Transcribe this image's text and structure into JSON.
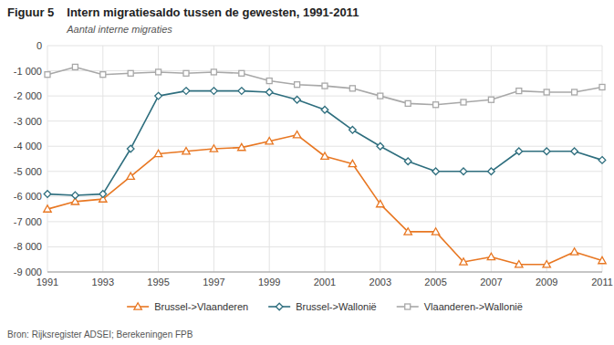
{
  "chart_data": {
    "type": "line",
    "title": "Intern migratiesaldo tussen de gewesten, 1991-2011",
    "subtitle": "Aantal interne migraties",
    "annotations": [
      "Figuur 5",
      "Bron: Rijksregister ADSEI; Berekeningen FPB"
    ],
    "x": [
      1991,
      1992,
      1993,
      1994,
      1995,
      1996,
      1997,
      1998,
      1999,
      2000,
      2001,
      2002,
      2003,
      2004,
      2005,
      2006,
      2007,
      2008,
      2009,
      2010,
      2011
    ],
    "series": [
      {
        "name": "Brussel->Vlaanderen",
        "color": "#E87722",
        "marker": "triangle",
        "values": [
          -6500,
          -6200,
          -6100,
          -5200,
          -4300,
          -4200,
          -4100,
          -4050,
          -3800,
          -3550,
          -4400,
          -4700,
          -6300,
          -7400,
          -7400,
          -8600,
          -8400,
          -8700,
          -8700,
          -8200,
          -8550
        ]
      },
      {
        "name": "Brussel->Wallonië",
        "color": "#2E6E7E",
        "marker": "diamond",
        "values": [
          -5900,
          -5950,
          -5900,
          -4100,
          -2000,
          -1800,
          -1800,
          -1800,
          -1850,
          -2150,
          -2550,
          -3350,
          -4000,
          -4600,
          -5000,
          -5000,
          -5000,
          -4200,
          -4200,
          -4200,
          -4550
        ]
      },
      {
        "name": "Vlaanderen->Wallonië",
        "color": "#A8A8A8",
        "marker": "square",
        "values": [
          -1150,
          -850,
          -1150,
          -1100,
          -1050,
          -1100,
          -1050,
          -1100,
          -1400,
          -1550,
          -1600,
          -1700,
          -2000,
          -2300,
          -2350,
          -2250,
          -2150,
          -1800,
          -1850,
          -1850,
          -1650
        ]
      }
    ],
    "xlim": [
      1991,
      2011
    ],
    "xticks": [
      1991,
      1993,
      1995,
      1997,
      1999,
      2001,
      2003,
      2005,
      2007,
      2009,
      2011
    ],
    "ylim": [
      -9000,
      0
    ],
    "yticks": [
      0,
      {
        "value": -1000,
        "label": "-1 000"
      },
      {
        "value": -2000,
        "label": "-2 000"
      },
      {
        "value": -3000,
        "label": "-3 000"
      },
      {
        "value": -4000,
        "label": "-4 000"
      },
      {
        "value": -5000,
        "label": "-5 000"
      },
      {
        "value": -6000,
        "label": "-6 000"
      },
      {
        "value": -7000,
        "label": "-7 000"
      },
      {
        "value": -8000,
        "label": "-8 000"
      },
      {
        "value": -9000,
        "label": "-9 000"
      }
    ],
    "grid": true,
    "legend": "bottom"
  }
}
